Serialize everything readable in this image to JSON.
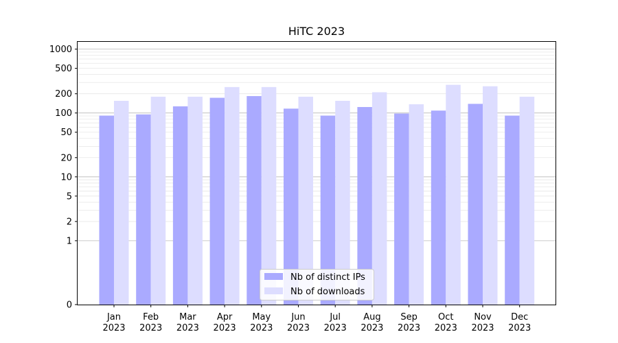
{
  "chart_data": {
    "type": "bar",
    "title": "HiTC 2023",
    "xlabel": "",
    "ylabel": "",
    "yscale": "symlog",
    "ylim": [
      0,
      1300
    ],
    "yticks": [
      0,
      1,
      2,
      5,
      10,
      20,
      50,
      100,
      200,
      500,
      1000
    ],
    "grid": "horizontal",
    "legend_position": "bottom-center",
    "categories": [
      {
        "month": "Jan",
        "year": "2023"
      },
      {
        "month": "Feb",
        "year": "2023"
      },
      {
        "month": "Mar",
        "year": "2023"
      },
      {
        "month": "Apr",
        "year": "2023"
      },
      {
        "month": "May",
        "year": "2023"
      },
      {
        "month": "Jun",
        "year": "2023"
      },
      {
        "month": "Jul",
        "year": "2023"
      },
      {
        "month": "Aug",
        "year": "2023"
      },
      {
        "month": "Sep",
        "year": "2023"
      },
      {
        "month": "Oct",
        "year": "2023"
      },
      {
        "month": "Nov",
        "year": "2023"
      },
      {
        "month": "Dec",
        "year": "2023"
      }
    ],
    "series": [
      {
        "name": "Nb of distinct IPs",
        "color": "#aaaaff",
        "values": [
          91,
          95,
          127,
          173,
          184,
          117,
          91,
          124,
          98,
          109,
          139,
          91
        ]
      },
      {
        "name": "Nb of downloads",
        "color": "#ddddff",
        "values": [
          155,
          180,
          180,
          255,
          255,
          180,
          155,
          211,
          137,
          276,
          262,
          180
        ]
      }
    ]
  }
}
